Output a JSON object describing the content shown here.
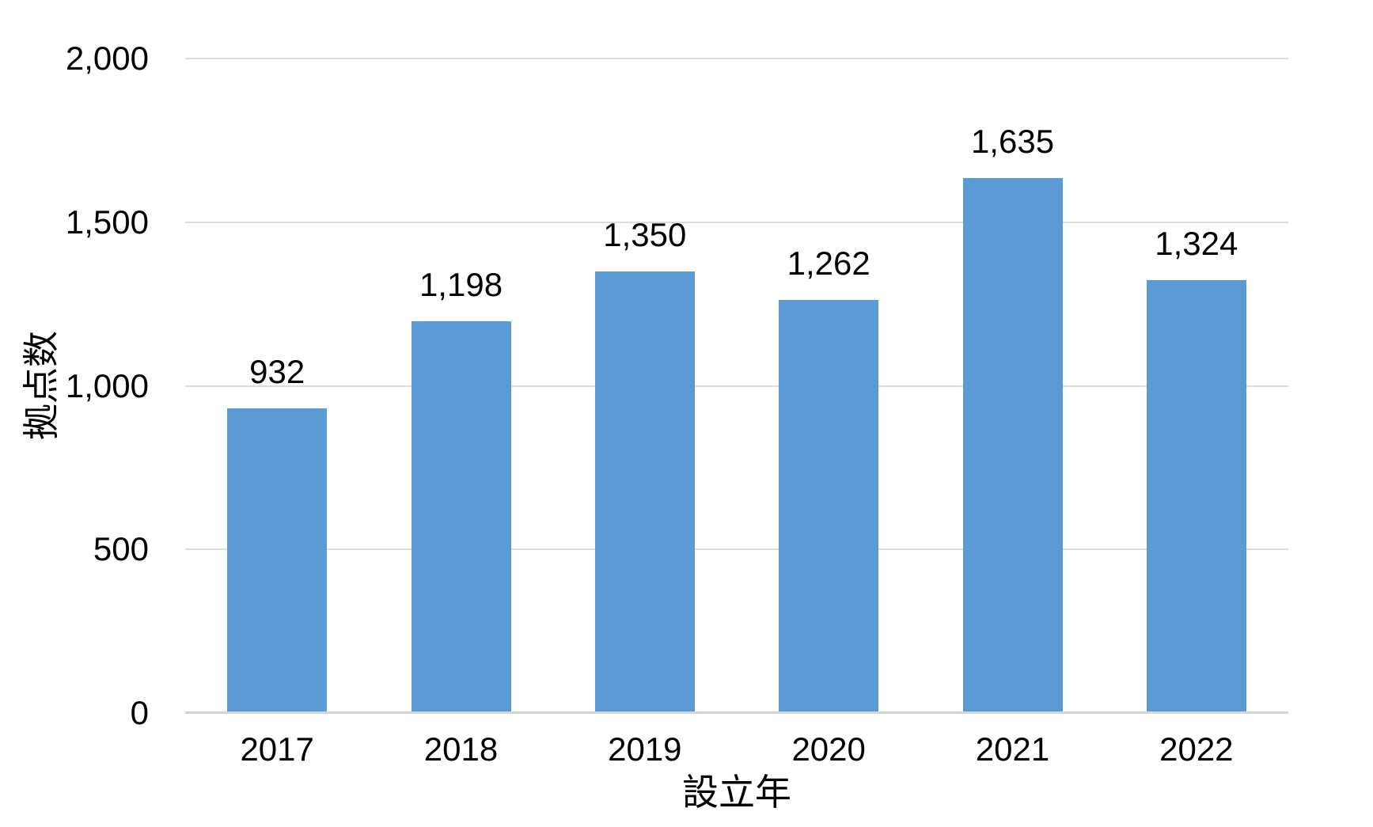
{
  "chart_data": {
    "type": "bar",
    "categories": [
      "2017",
      "2018",
      "2019",
      "2020",
      "2021",
      "2022"
    ],
    "values": [
      932,
      1198,
      1350,
      1262,
      1635,
      1324
    ],
    "bar_labels": [
      "932",
      "1,198",
      "1,350",
      "1,262",
      "1,635",
      "1,324"
    ],
    "xlabel": "設立年",
    "ylabel": "拠点数",
    "ylim": [
      0,
      2000
    ],
    "yticks": [
      0,
      500,
      1000,
      1500,
      2000
    ],
    "ytick_labels": [
      "0",
      "500",
      "1,000",
      "1,500",
      "2,000"
    ],
    "grid": true,
    "legend_position": "none",
    "bar_color": "#5B9BD5",
    "gridline_color": "#DCDCDC",
    "axisline_color": "#D5D5D5",
    "text_color": "#000000"
  }
}
